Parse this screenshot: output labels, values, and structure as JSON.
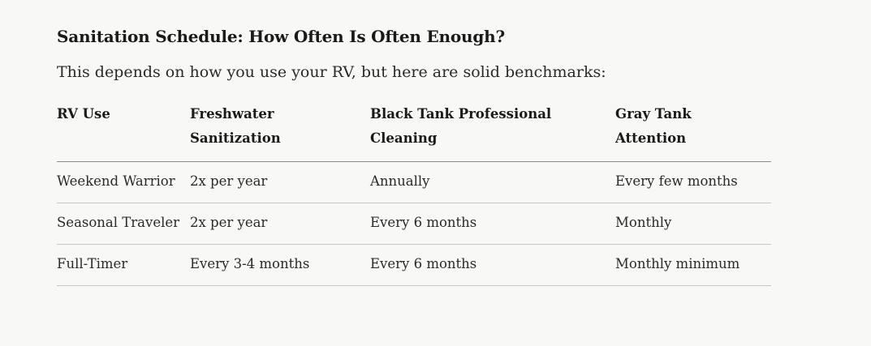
{
  "article": {
    "heading": "Sanitation Schedule: How Often Is Often Enough?",
    "intro": "This depends on how you use your RV, but here are solid benchmarks:"
  },
  "table": {
    "headers": [
      "RV Use",
      "Freshwater Sanitization",
      "Black Tank Professional Cleaning",
      "Gray Tank Attention"
    ],
    "rows": [
      [
        "Weekend Warrior",
        "2x per year",
        "Annually",
        "Every few months"
      ],
      [
        "Seasonal Traveler",
        "2x per year",
        "Every 6 months",
        "Monthly"
      ],
      [
        "Full-Timer",
        "Every 3-4 months",
        "Every 6 months",
        "Monthly minimum"
      ]
    ]
  }
}
